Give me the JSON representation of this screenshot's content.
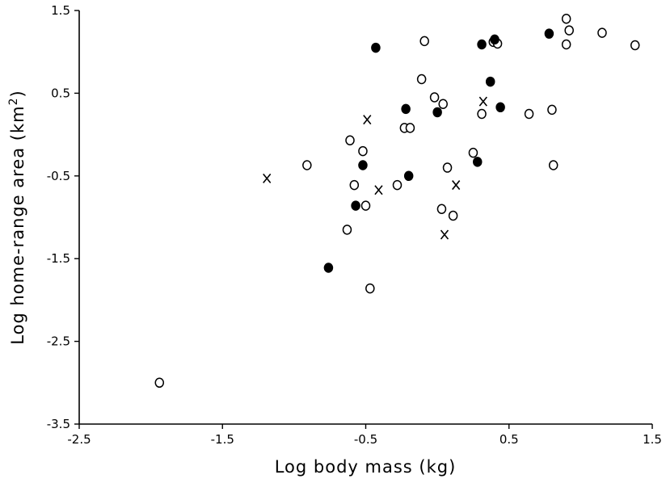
{
  "chart_data": {
    "type": "scatter",
    "title": "",
    "xlabel": "Log body mass (kg)",
    "ylabel_main": "Log home-range area (km",
    "ylabel_sup": "2",
    "ylabel_end": ")",
    "xlim": [
      -2.5,
      1.5
    ],
    "ylim": [
      -3.5,
      1.5
    ],
    "xticks": [
      -2.5,
      -1.5,
      -0.5,
      0.5,
      1.5
    ],
    "xtick_labels": [
      "-2.5",
      "-1.5",
      "-0.5",
      "0.5",
      "1.5"
    ],
    "yticks": [
      -3.5,
      -2.5,
      -1.5,
      -0.5,
      0.5,
      1.5
    ],
    "ytick_labels": [
      "-3.5",
      "-2.5",
      "-1.5",
      "-0.5",
      "0.5",
      "1.5"
    ],
    "grid": false,
    "series": [
      {
        "marker": "open-circle",
        "points": [
          [
            -1.94,
            -3.0
          ],
          [
            -0.91,
            -0.37
          ],
          [
            -0.63,
            -1.15
          ],
          [
            -0.61,
            -0.07
          ],
          [
            -0.58,
            -0.61
          ],
          [
            -0.52,
            -0.2
          ],
          [
            -0.5,
            -0.86
          ],
          [
            -0.47,
            -1.86
          ],
          [
            -0.28,
            -0.61
          ],
          [
            -0.23,
            0.08
          ],
          [
            -0.19,
            0.08
          ],
          [
            -0.11,
            0.67
          ],
          [
            -0.09,
            1.13
          ],
          [
            -0.02,
            0.45
          ],
          [
            0.04,
            0.37
          ],
          [
            0.03,
            -0.9
          ],
          [
            0.07,
            -0.4
          ],
          [
            0.11,
            -0.98
          ],
          [
            0.25,
            -0.22
          ],
          [
            0.31,
            0.25
          ],
          [
            0.39,
            1.12
          ],
          [
            0.42,
            1.1
          ],
          [
            0.64,
            0.25
          ],
          [
            0.8,
            0.3
          ],
          [
            0.81,
            -0.37
          ],
          [
            0.9,
            1.09
          ],
          [
            0.9,
            1.4
          ],
          [
            0.92,
            1.26
          ],
          [
            1.15,
            1.23
          ],
          [
            1.38,
            1.08
          ]
        ]
      },
      {
        "marker": "filled-circle",
        "points": [
          [
            -0.76,
            -1.61
          ],
          [
            -0.57,
            -0.86
          ],
          [
            -0.52,
            -0.37
          ],
          [
            -0.43,
            1.05
          ],
          [
            -0.22,
            0.31
          ],
          [
            -0.2,
            -0.5
          ],
          [
            0.0,
            0.27
          ],
          [
            0.28,
            -0.33
          ],
          [
            0.31,
            1.09
          ],
          [
            0.37,
            0.64
          ],
          [
            0.4,
            1.15
          ],
          [
            0.44,
            0.33
          ],
          [
            0.78,
            1.22
          ]
        ]
      },
      {
        "marker": "x",
        "points": [
          [
            -1.19,
            -0.53
          ],
          [
            -0.49,
            0.18
          ],
          [
            -0.41,
            -0.67
          ],
          [
            0.05,
            -1.21
          ],
          [
            0.13,
            -0.61
          ],
          [
            0.32,
            0.4
          ]
        ]
      }
    ]
  }
}
